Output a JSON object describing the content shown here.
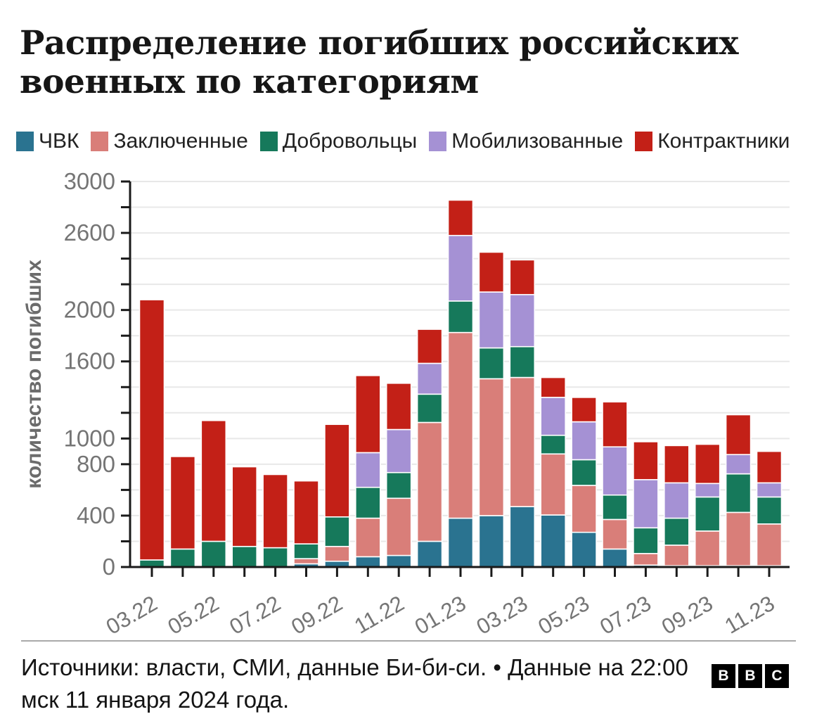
{
  "header": {
    "title_line1": "Распределение погибших российских",
    "title_line2": "военных по категориям"
  },
  "chart_data": {
    "type": "bar",
    "stacked": true,
    "title": "Распределение погибших российских военных по категориям",
    "ylabel": "количество погибших",
    "xlabel": "",
    "ylim": [
      0,
      3000
    ],
    "y_tick_step": 200,
    "y_labeled_ticks": [
      0,
      400,
      800,
      1000,
      1600,
      2000,
      2600,
      3000
    ],
    "grid": true,
    "legend_position": "top",
    "categories": [
      "03.22",
      "04.22",
      "05.22",
      "06.22",
      "07.22",
      "08.22",
      "09.22",
      "10.22",
      "11.22",
      "12.22",
      "01.23",
      "02.23",
      "03.23",
      "04.23",
      "05.23",
      "06.23",
      "07.23",
      "08.23",
      "09.23",
      "10.23",
      "11.23"
    ],
    "x_labels_shown": [
      "03.22",
      "05.22",
      "07.22",
      "09.22",
      "11.22",
      "01.23",
      "03.23",
      "05.23",
      "07.23",
      "09.23",
      "11.23"
    ],
    "series": [
      {
        "name": "ЧВК",
        "color": "#2a7390",
        "values": [
          0,
          0,
          0,
          0,
          0,
          25,
          45,
          80,
          90,
          200,
          380,
          400,
          470,
          405,
          270,
          140,
          15,
          10,
          10,
          10,
          10
        ]
      },
      {
        "name": "Заключенные",
        "color": "#d97e79",
        "values": [
          0,
          0,
          0,
          0,
          0,
          40,
          115,
          300,
          445,
          925,
          1445,
          1065,
          1005,
          475,
          365,
          230,
          90,
          160,
          270,
          415,
          325
        ]
      },
      {
        "name": "Добровольцы",
        "color": "#16795b",
        "values": [
          55,
          140,
          200,
          160,
          150,
          115,
          230,
          240,
          200,
          220,
          245,
          240,
          240,
          145,
          200,
          190,
          200,
          210,
          265,
          300,
          210
        ]
      },
      {
        "name": "Мобилизованные",
        "color": "#a591d4",
        "values": [
          0,
          0,
          0,
          0,
          0,
          0,
          0,
          270,
          335,
          240,
          510,
          435,
          405,
          295,
          295,
          375,
          375,
          275,
          105,
          150,
          110
        ]
      },
      {
        "name": "Контрактники",
        "color": "#c32017",
        "values": [
          2025,
          720,
          940,
          620,
          570,
          490,
          720,
          600,
          360,
          265,
          275,
          310,
          270,
          155,
          190,
          350,
          295,
          290,
          305,
          310,
          245
        ]
      }
    ],
    "style": {
      "grid_color": "#e8e8e8",
      "axis_color": "#1a1a1a",
      "tick_label_color": "#757575",
      "bar_separator_color": "#ffffff"
    }
  },
  "footer": {
    "source_text": "Источники: власти, СМИ, данные Би-би-си. • Данные на 22:00 мск 11 января 2024 года.",
    "logo_letters": [
      "B",
      "B",
      "C"
    ]
  }
}
